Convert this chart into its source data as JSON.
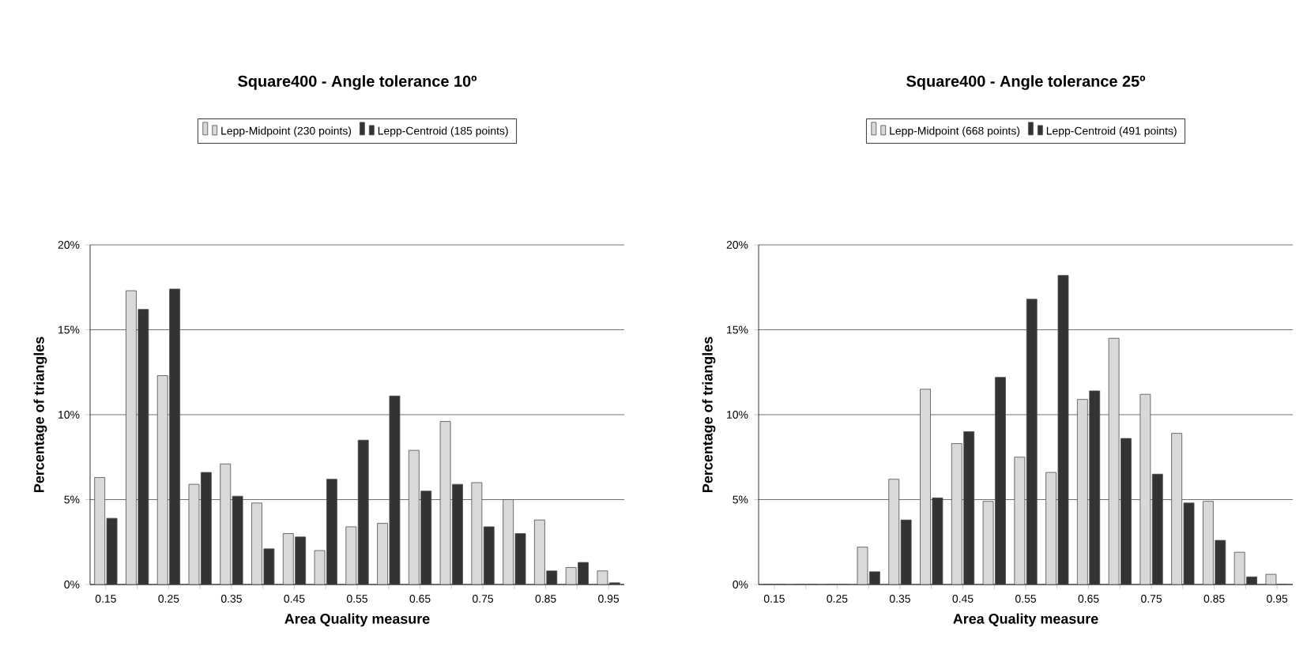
{
  "chart_data": [
    {
      "type": "bar",
      "title": "Square400 - Angle tolerance 10º",
      "xlabel": "Area Quality measure",
      "ylabel": "Percentage of triangles",
      "categories": [
        "0.15",
        null,
        "0.25",
        null,
        "0.35",
        null,
        "0.45",
        null,
        "0.55",
        null,
        "0.65",
        null,
        "0.75",
        null,
        "0.85",
        null,
        "0.95"
      ],
      "series": [
        {
          "name": "Lepp-Midpoint (230 points)",
          "color": "#d9d9d9",
          "values": [
            6.3,
            17.3,
            12.3,
            5.9,
            7.1,
            4.8,
            3.0,
            2.0,
            3.4,
            3.6,
            7.9,
            9.6,
            6.0,
            5.0,
            3.8,
            1.0,
            0.8
          ]
        },
        {
          "name": "Lepp-Centroid (185 points)",
          "color": "#333333",
          "values": [
            3.9,
            16.2,
            17.4,
            6.6,
            5.2,
            2.1,
            2.8,
            6.2,
            8.5,
            11.1,
            5.5,
            5.9,
            3.4,
            3.0,
            0.8,
            1.3,
            0.1
          ]
        }
      ],
      "ylim": [
        0,
        20
      ],
      "yticks": [
        {
          "value": 0,
          "label": "0%"
        },
        {
          "value": 5,
          "label": "5%"
        },
        {
          "value": 10,
          "label": "10%"
        },
        {
          "value": 15,
          "label": "15%"
        },
        {
          "value": 20,
          "label": "20%"
        }
      ],
      "grid": "y",
      "legend": "top"
    },
    {
      "type": "bar",
      "title": "Square400 - Angle tolerance 25º",
      "xlabel": "Area Quality measure",
      "ylabel": "Percentage of triangles",
      "categories": [
        "0.15",
        null,
        "0.25",
        null,
        "0.35",
        null,
        "0.45",
        null,
        "0.55",
        null,
        "0.65",
        null,
        "0.75",
        null,
        "0.85",
        null,
        "0.95"
      ],
      "series": [
        {
          "name": "Lepp-Midpoint (668 points)",
          "color": "#d9d9d9",
          "values": [
            0,
            0,
            0,
            2.2,
            6.2,
            11.5,
            8.3,
            4.9,
            7.5,
            6.6,
            10.9,
            14.5,
            11.2,
            8.9,
            4.9,
            1.9,
            0.6
          ]
        },
        {
          "name": "Lepp-Centroid (491 points)",
          "color": "#333333",
          "values": [
            0,
            0,
            0,
            0.75,
            3.8,
            5.1,
            9.0,
            12.2,
            16.8,
            18.2,
            11.4,
            8.6,
            6.5,
            4.8,
            2.6,
            0.45,
            0
          ]
        }
      ],
      "ylim": [
        0,
        20
      ],
      "yticks": [
        {
          "value": 0,
          "label": "0%"
        },
        {
          "value": 5,
          "label": "5%"
        },
        {
          "value": 10,
          "label": "10%"
        },
        {
          "value": 15,
          "label": "15%"
        },
        {
          "value": 20,
          "label": "20%"
        }
      ],
      "grid": "y",
      "legend": "top"
    }
  ]
}
